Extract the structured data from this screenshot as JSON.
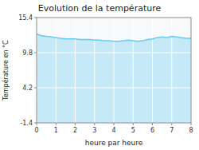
{
  "chart_data": {
    "type": "area",
    "title": "Evolution de la température",
    "x_label": "heure par heure",
    "y_label": "Température en °C",
    "x": [
      0,
      0.25,
      0.5,
      0.75,
      1.0,
      1.25,
      1.5,
      1.75,
      2.0,
      2.25,
      2.5,
      2.75,
      3.0,
      3.25,
      3.5,
      3.75,
      4.0,
      4.25,
      4.5,
      4.75,
      5.0,
      5.25,
      5.5,
      5.75,
      6.0,
      6.25,
      6.5,
      6.75,
      7.0,
      7.25,
      7.5,
      7.75,
      8.0
    ],
    "values": [
      12.8,
      12.5,
      12.4,
      12.3,
      12.2,
      12.1,
      12.0,
      12.0,
      12.0,
      11.9,
      11.9,
      11.9,
      11.8,
      11.8,
      11.7,
      11.7,
      11.6,
      11.6,
      11.7,
      11.8,
      11.7,
      11.6,
      11.7,
      11.9,
      12.0,
      12.2,
      12.3,
      12.2,
      12.4,
      12.3,
      12.2,
      12.1,
      12.1
    ],
    "color": "#66ccee",
    "xlim": [
      0,
      8
    ],
    "ylim": [
      -1.4,
      15.4
    ],
    "xticks": [
      0,
      1,
      2,
      3,
      4,
      5,
      6,
      7,
      8
    ],
    "yticks": [
      -1.4,
      4.2,
      9.8,
      15.4
    ],
    "grid": true
  }
}
